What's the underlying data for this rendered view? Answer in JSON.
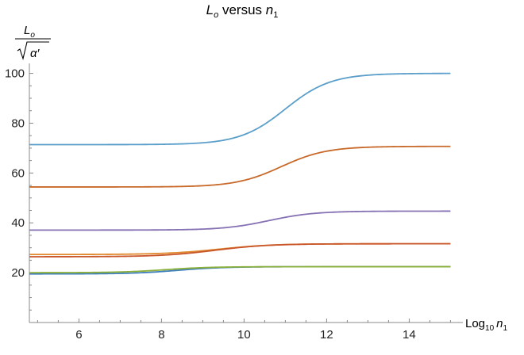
{
  "chart_data": {
    "type": "line",
    "title": {
      "main": "L",
      "main_sub": "o",
      "mid": " versus ",
      "var": "n",
      "var_sub": "1"
    },
    "ylabel": {
      "num": "L",
      "num_sub": "o",
      "den": "α′"
    },
    "xlabel": {
      "pre": "Log",
      "pre_sub": "10",
      "var": "n",
      "var_sub": "1"
    },
    "xlim": [
      4.8,
      15.3
    ],
    "ylim": [
      0,
      104
    ],
    "x_ticks": [
      6,
      8,
      10,
      12,
      14
    ],
    "y_ticks": [
      20,
      40,
      60,
      80,
      100
    ],
    "grid": false,
    "legend": "none",
    "x_range": [
      4.8,
      15.0
    ],
    "series": [
      {
        "low": 71.4,
        "high": 100.0,
        "mid": 11.0,
        "width": 0.55,
        "color": "#5b9ec9"
      },
      {
        "low": 54.4,
        "high": 70.7,
        "mid": 10.9,
        "width": 0.55,
        "color": "#c8692a"
      },
      {
        "low": 37.1,
        "high": 44.7,
        "mid": 10.6,
        "width": 0.55,
        "color": "#8571b3"
      },
      {
        "low": 27.3,
        "high": 31.6,
        "mid": 9.4,
        "width": 0.65,
        "color": "#e0892d"
      },
      {
        "low": 26.4,
        "high": 31.6,
        "mid": 9.3,
        "width": 0.65,
        "color": "#c9562b"
      },
      {
        "low": 19.5,
        "high": 22.4,
        "mid": 8.4,
        "width": 0.55,
        "color": "#3f7fbf"
      },
      {
        "low": 20.0,
        "high": 22.4,
        "mid": 8.1,
        "width": 0.55,
        "color": "#8ab03a"
      }
    ]
  }
}
